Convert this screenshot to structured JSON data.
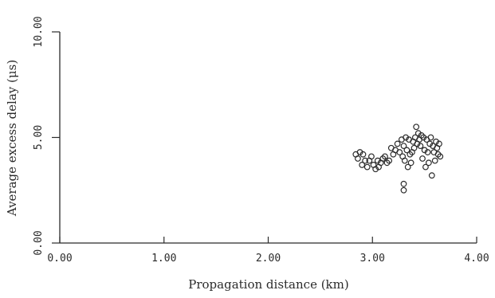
{
  "chart_data": {
    "type": "scatter",
    "title": "",
    "xlabel": "Propagation distance (km)",
    "ylabel": "Average excess delay (μs)",
    "xlim": [
      0,
      4
    ],
    "ylim": [
      0,
      10
    ],
    "xticks": [
      "0.00",
      "1.00",
      "2.00",
      "3.00",
      "4.00"
    ],
    "yticks": [
      "0.00",
      "5.00",
      "10.00"
    ],
    "grid": false,
    "marker": "open-circle",
    "series": [
      {
        "x": [
          2.84,
          2.86,
          2.88,
          2.9,
          2.91,
          2.93,
          2.95,
          2.97,
          2.99,
          3.01,
          3.03,
          3.05,
          3.06,
          3.08,
          3.1,
          3.12,
          3.14,
          3.16,
          3.18,
          3.2,
          3.22,
          3.24,
          3.26,
          3.28,
          3.29,
          3.3,
          3.31,
          3.32,
          3.33,
          3.34,
          3.35,
          3.36,
          3.37,
          3.38,
          3.39,
          3.4,
          3.41,
          3.42,
          3.43,
          3.44,
          3.45,
          3.46,
          3.47,
          3.48,
          3.49,
          3.5,
          3.51,
          3.52,
          3.53,
          3.54,
          3.55,
          3.56,
          3.57,
          3.58,
          3.59,
          3.6,
          3.61,
          3.62,
          3.63,
          3.64,
          3.65,
          3.3,
          3.3
        ],
        "y": [
          4.2,
          4.0,
          4.3,
          3.7,
          4.2,
          3.9,
          3.6,
          3.9,
          4.1,
          3.7,
          3.5,
          3.9,
          3.6,
          3.8,
          4.0,
          4.1,
          3.8,
          3.9,
          4.5,
          4.2,
          4.4,
          4.7,
          4.3,
          4.9,
          4.1,
          4.6,
          3.9,
          5.0,
          4.4,
          3.6,
          4.9,
          4.2,
          3.8,
          4.3,
          4.8,
          4.5,
          5.0,
          5.5,
          4.7,
          5.2,
          4.9,
          4.6,
          5.1,
          4.0,
          5.0,
          4.4,
          3.6,
          4.9,
          4.3,
          3.8,
          4.7,
          5.0,
          3.2,
          4.6,
          4.3,
          3.9,
          4.8,
          4.5,
          4.2,
          4.7,
          4.1,
          2.8,
          2.5
        ]
      }
    ]
  }
}
